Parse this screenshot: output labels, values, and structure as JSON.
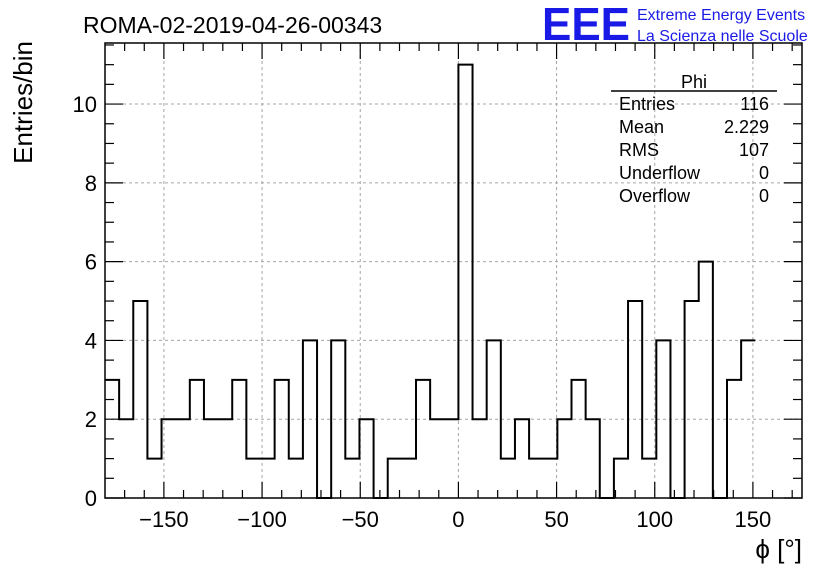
{
  "header": {
    "run_title": "ROMA-02-2019-04-26-00343",
    "logo_text": "EEE",
    "org_line1": "Extreme Energy Events",
    "org_line2": "La Scienza nelle Scuole"
  },
  "colors": {
    "logo_blue": "#1a1ae6",
    "text": "#000000",
    "grid": "#a6a6a6",
    "histogram": "#000000"
  },
  "stats_box": {
    "title": "Phi",
    "rows": [
      {
        "label": "Entries",
        "value": "116"
      },
      {
        "label": "Mean",
        "value": "2.229"
      },
      {
        "label": "RMS",
        "value": "107"
      },
      {
        "label": "Underflow",
        "value": "0"
      },
      {
        "label": "Overflow",
        "value": "0"
      }
    ]
  },
  "chart_data": {
    "type": "histogram",
    "title": "ROMA-02-2019-04-26-00343",
    "xlabel": "ϕ [°]",
    "ylabel": "Entries/bin",
    "xlim": [
      -180,
      175
    ],
    "ylim": [
      0,
      11.55
    ],
    "bin_width": 7.2,
    "x_start": -180,
    "values": [
      3,
      2,
      5,
      1,
      2,
      2,
      3,
      2,
      2,
      3,
      1,
      1,
      3,
      1,
      4,
      0,
      4,
      1,
      2,
      0,
      1,
      1,
      3,
      2,
      2,
      11,
      2,
      4,
      1,
      2,
      1,
      1,
      2,
      3,
      2,
      0,
      1,
      5,
      1,
      4,
      0,
      5,
      6,
      0,
      3,
      4
    ],
    "xticks": [
      -150,
      -100,
      -50,
      0,
      50,
      100,
      150
    ],
    "xtick_labels": [
      "−150",
      "−100",
      "−50",
      "0",
      "50",
      "100",
      "150"
    ],
    "yticks": [
      0,
      2,
      4,
      6,
      8,
      10
    ],
    "ytick_labels": [
      "0",
      "2",
      "4",
      "6",
      "8",
      "10"
    ],
    "grid": true
  }
}
